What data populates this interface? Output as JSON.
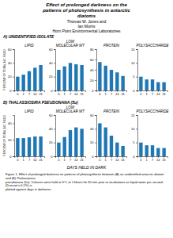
{
  "title": [
    "Effect of prolonged darkness on the",
    "patterns of photosynthesis in antarctic",
    "diatoms"
  ],
  "subtitle": [
    "Thomas W. Jones and",
    "Ian Morris",
    "Horn Point Environmental Laboratories"
  ],
  "xlabel": "DAYS HELD IN DARK",
  "annotations": [
    "A) UNIDENTIFIED ISOLATE",
    "B) THALASSIOSIRA PSEUDONANA (5u)",
    "Figure 1. Effect of prolonged darkness on patterns of photosynthesis between (A) an unidentified antarctic diatom and (B) Thalassiosira",
    "pseudonana (5u). Cultures were held at 0°C at 1 klnein for 30 min prior to incubations as liquid water per second. (Duncan's 0.1%) is",
    "plotted against days in darkness."
  ],
  "chart_data": [
    {
      "type": "bar",
      "title": "LIPID",
      "ylabel": "PERCENT OF TOTAL 14C FIXED",
      "categories": [
        "0",
        "1",
        "7",
        "14",
        "21"
      ],
      "values": [
        20,
        23,
        28,
        33,
        37
      ],
      "ylim": [
        0,
        60
      ],
      "yticks": [
        0,
        20,
        40,
        60
      ],
      "grid": false
    },
    {
      "type": "bar",
      "title": "LOW\nMOLECULAR WT",
      "categories": [
        "0",
        "1",
        "7",
        "14",
        "21"
      ],
      "values": [
        30,
        35,
        40,
        38,
        37
      ],
      "ylim": [
        0,
        60
      ],
      "yticks": [
        0,
        20,
        40,
        60
      ],
      "grid": false
    },
    {
      "type": "bar",
      "title": "PROTEIN",
      "categories": [
        "0",
        "1",
        "7",
        "14",
        "21"
      ],
      "values": [
        55,
        48,
        40,
        35,
        28
      ],
      "ylim": [
        0,
        80
      ],
      "yticks": [
        0,
        20,
        40,
        60,
        80
      ],
      "grid": false
    },
    {
      "type": "bar",
      "title": "POLYSACCHARIDE",
      "categories": [
        "0",
        "1",
        "7",
        "14",
        "21"
      ],
      "values": [
        5,
        4,
        4,
        3,
        3
      ],
      "ylim": [
        0,
        15
      ],
      "yticks": [
        0,
        5,
        10,
        15
      ],
      "grid": false
    },
    {
      "type": "bar",
      "title": "LIPID",
      "ylabel": "PERCENT OF TOTAL 14C FIXED",
      "categories": [
        "0",
        "1",
        "7",
        "14",
        "21"
      ],
      "values": [
        22,
        22,
        23,
        24,
        24
      ],
      "ylim": [
        0,
        50
      ],
      "yticks": [
        0,
        20,
        40
      ],
      "grid": false
    },
    {
      "type": "bar",
      "title": "LOW\nMOLECULAR WT",
      "categories": [
        "0",
        "1",
        "7",
        "14",
        "21"
      ],
      "values": [
        20,
        28,
        38,
        42,
        40
      ],
      "ylim": [
        0,
        60
      ],
      "yticks": [
        0,
        20,
        40,
        60
      ],
      "grid": false
    },
    {
      "type": "bar",
      "title": "PROTEIN",
      "categories": [
        "0",
        "1",
        "7",
        "14",
        "21"
      ],
      "values": [
        48,
        42,
        30,
        20,
        15
      ],
      "ylim": [
        0,
        60
      ],
      "yticks": [
        0,
        20,
        40,
        60
      ],
      "grid": false
    },
    {
      "type": "bar",
      "title": "POLYSACCHARIDE",
      "categories": [
        "0",
        "1",
        "7",
        "14",
        "21"
      ],
      "values": [
        5,
        4,
        4,
        3,
        3
      ],
      "ylim": [
        0,
        15
      ],
      "yticks": [
        0,
        5,
        10,
        15
      ],
      "grid": false
    }
  ]
}
